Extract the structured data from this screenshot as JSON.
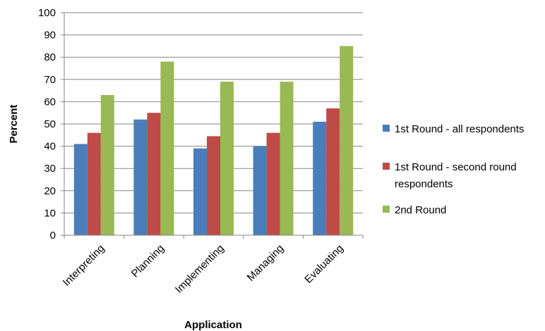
{
  "chart_data": {
    "type": "bar",
    "categories": [
      "Interpreting",
      "Planning",
      "Implementing",
      "Managing",
      "Evaluating"
    ],
    "series": [
      {
        "name": "1st Round - all respondents",
        "legend_lines": [
          "1st Round - all respondents"
        ],
        "color": "#4A7EBB",
        "values": [
          41,
          52,
          39,
          40,
          51
        ]
      },
      {
        "name": "1st Round - second round respondents",
        "legend_lines": [
          "1st Round - second round",
          "respondents"
        ],
        "color": "#BE4B48",
        "values": [
          46,
          55,
          44.5,
          46,
          57
        ]
      },
      {
        "name": "2nd Round",
        "legend_lines": [
          "2nd Round"
        ],
        "color": "#98B954",
        "values": [
          63,
          78,
          69,
          69,
          85
        ]
      }
    ],
    "xlabel": "Application",
    "ylabel": "Percent",
    "ylim": [
      0,
      100
    ],
    "yticks": [
      0,
      10,
      20,
      30,
      40,
      50,
      60,
      70,
      80,
      90,
      100
    ],
    "grid": true,
    "legend_position": "right"
  }
}
